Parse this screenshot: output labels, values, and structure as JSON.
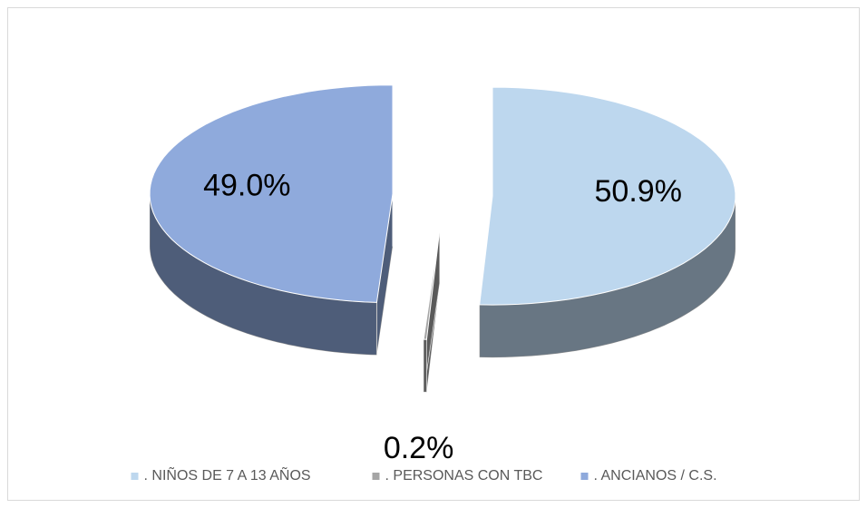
{
  "chart_data": {
    "type": "pie",
    "categories": [
      ". NIÑOS DE 7 A 13 AÑOS",
      ". PERSONAS CON TBC",
      ". ANCIANOS / C.S."
    ],
    "values": [
      50.9,
      0.2,
      49.0
    ],
    "value_labels": [
      "50.9%",
      "0.2%",
      "49.0%"
    ],
    "colors": [
      "#bdd7ee",
      "#a5a5a5",
      "#8faadc"
    ],
    "legend": "bottom"
  }
}
